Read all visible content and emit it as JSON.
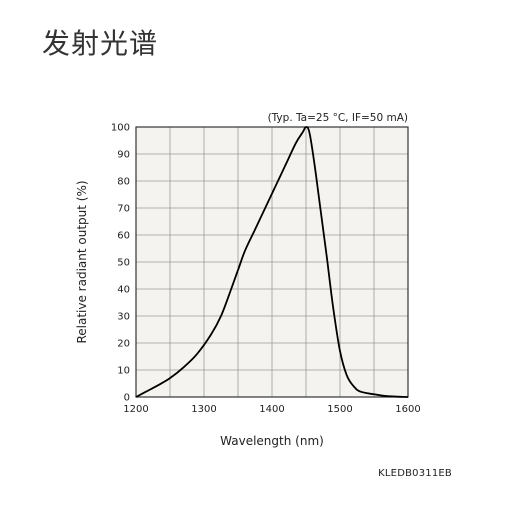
{
  "page": {
    "title": "发射光谱",
    "figure_code": "KLEDB0311EB"
  },
  "colors": {
    "plot_background": "#f5f3ef",
    "grid": "#9a9a9a",
    "curve": "#000000"
  },
  "chart_data": {
    "type": "line",
    "title": "",
    "condition": "(Typ. Ta=25 °C, IF=50 mA)",
    "xlabel": "Wavelength (nm)",
    "ylabel": "Relative radiant output (%)",
    "xlim": [
      1200,
      1600
    ],
    "ylim": [
      0,
      100
    ],
    "xticks": [
      1200,
      1300,
      1400,
      1500,
      1600
    ],
    "yticks": [
      0,
      10,
      20,
      30,
      40,
      50,
      60,
      70,
      80,
      90,
      100
    ],
    "grid": true,
    "legend": "none",
    "series": [
      {
        "x": [
          1200,
          1215,
          1230,
          1250,
          1270,
          1290,
          1310,
          1325,
          1340,
          1350,
          1360,
          1375,
          1390,
          1405,
          1420,
          1435,
          1445,
          1450,
          1455,
          1462,
          1470,
          1480,
          1490,
          1500,
          1510,
          1520,
          1530,
          1550,
          1570,
          1600
        ],
        "y": [
          0,
          2,
          4,
          7,
          11,
          16,
          23,
          30,
          40,
          47,
          54,
          62,
          70,
          78,
          86,
          94,
          98,
          100,
          98,
          87,
          72,
          53,
          33,
          17,
          8,
          4,
          2,
          1,
          0.3,
          0
        ]
      }
    ]
  }
}
